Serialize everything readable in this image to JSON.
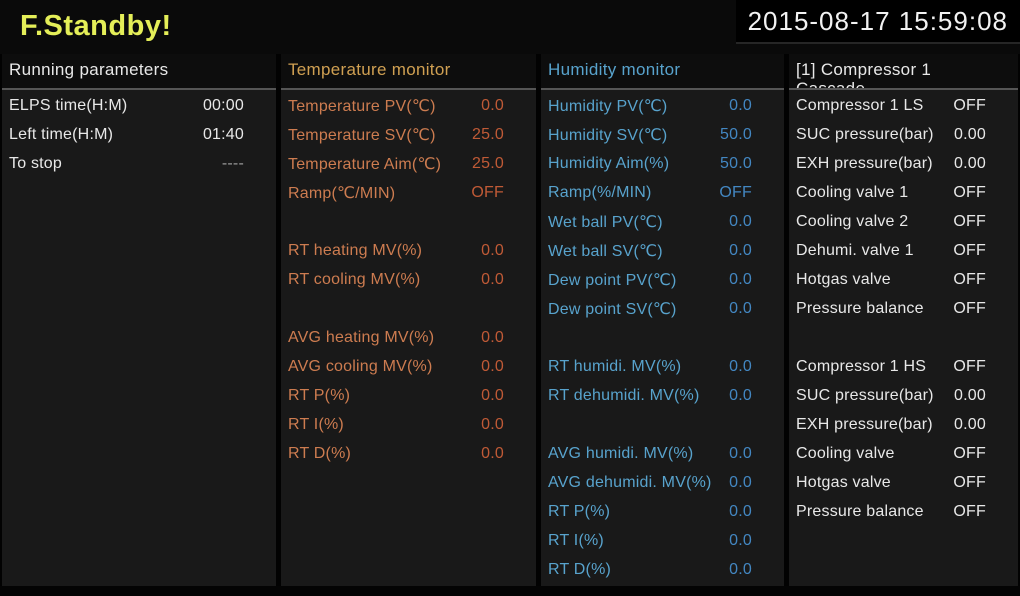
{
  "header": {
    "status_title": "F.Standby!",
    "datetime": "2015-08-17 15:59:08"
  },
  "colors": {
    "status_title": "#e4ee58",
    "datetime_text": "#f2f2f2",
    "panel_bg": "#191919",
    "temperature_accent": "#d0a052",
    "humidity_accent": "#58a3cd",
    "white_text": "#e8e8e8"
  },
  "columns": [
    {
      "id": "running-parameters",
      "title": "Running parameters",
      "title2": "",
      "title_color": "#e8e8e8",
      "label_color": "#e8e8e8",
      "value_color": "#e8e8e8",
      "rows": [
        {
          "label": "ELPS time(H:M)",
          "value": "00:00"
        },
        {
          "label": "Left time(H:M)",
          "value": "01:40"
        },
        {
          "label": "To stop",
          "value": "----",
          "value_color": "#9a9a9a"
        }
      ]
    },
    {
      "id": "temperature-monitor",
      "title": "Temperature monitor",
      "title2": "",
      "title_color": "#d0a052",
      "label_color": "#cd7c50",
      "value_color": "#c05a36",
      "rows": [
        {
          "label": "Temperature PV(℃)",
          "value": "0.0"
        },
        {
          "label": "Temperature SV(℃)",
          "value": "25.0"
        },
        {
          "label": "Temperature Aim(℃)",
          "value": "25.0"
        },
        {
          "label": "Ramp(℃/MIN)",
          "value": "OFF"
        },
        {
          "spacer": true
        },
        {
          "label": "RT heating MV(%)",
          "value": "0.0"
        },
        {
          "label": "RT cooling MV(%)",
          "value": "0.0"
        },
        {
          "spacer": true
        },
        {
          "label": "AVG heating MV(%)",
          "value": "0.0"
        },
        {
          "label": "AVG cooling MV(%)",
          "value": "0.0"
        },
        {
          "label": "RT P(%)",
          "value": "0.0"
        },
        {
          "label": "RT I(%)",
          "value": "0.0"
        },
        {
          "label": "RT D(%)",
          "value": "0.0"
        }
      ]
    },
    {
      "id": "humidity-monitor",
      "title": "Humidity monitor",
      "title2": "",
      "title_color": "#58a3cd",
      "label_color": "#58a3cd",
      "value_color": "#4387c2",
      "rows": [
        {
          "label": "Humidity PV(℃)",
          "value": "0.0"
        },
        {
          "label": "Humidity SV(℃)",
          "value": "50.0"
        },
        {
          "label": "Humidity Aim(%)",
          "value": "50.0"
        },
        {
          "label": "Ramp(%/MIN)",
          "value": "OFF"
        },
        {
          "label": "Wet ball PV(℃)",
          "value": "0.0"
        },
        {
          "label": "Wet ball SV(℃)",
          "value": "0.0"
        },
        {
          "label": "Dew point PV(℃)",
          "value": "0.0"
        },
        {
          "label": "Dew point SV(℃)",
          "value": "0.0"
        },
        {
          "spacer": true
        },
        {
          "label": "RT humidi. MV(%)",
          "value": "0.0"
        },
        {
          "label": "RT dehumidi. MV(%)",
          "value": "0.0"
        },
        {
          "spacer": true
        },
        {
          "label": "AVG humidi. MV(%)",
          "value": "0.0"
        },
        {
          "label": "AVG dehumidi. MV(%)",
          "value": "0.0"
        },
        {
          "label": "RT P(%)",
          "value": "0.0"
        },
        {
          "label": "RT I(%)",
          "value": "0.0"
        },
        {
          "label": "RT D(%)",
          "value": "0.0"
        }
      ]
    },
    {
      "id": "compressor-1-cascade",
      "title": "[1] Compressor 1",
      "title2": "Cascade",
      "title_color": "#e8e8e8",
      "label_color": "#e8e8e8",
      "value_color": "#e8e8e8",
      "rows": [
        {
          "label": "Compressor 1 LS",
          "value": "OFF"
        },
        {
          "label": "SUC pressure(bar)",
          "value": "0.00"
        },
        {
          "label": "EXH pressure(bar)",
          "value": "0.00"
        },
        {
          "label": "Cooling valve 1",
          "value": "OFF"
        },
        {
          "label": "Cooling valve 2",
          "value": "OFF"
        },
        {
          "label": "Dehumi. valve 1",
          "value": "OFF"
        },
        {
          "label": "Hotgas valve",
          "value": "OFF"
        },
        {
          "label": "Pressure balance",
          "value": "OFF"
        },
        {
          "spacer": true
        },
        {
          "label": "Compressor 1 HS",
          "value": "OFF"
        },
        {
          "label": "SUC pressure(bar)",
          "value": "0.00"
        },
        {
          "label": "EXH pressure(bar)",
          "value": "0.00"
        },
        {
          "label": "Cooling valve",
          "value": "OFF"
        },
        {
          "label": "Hotgas valve",
          "value": "OFF"
        },
        {
          "label": "Pressure balance",
          "value": "OFF"
        }
      ]
    }
  ]
}
